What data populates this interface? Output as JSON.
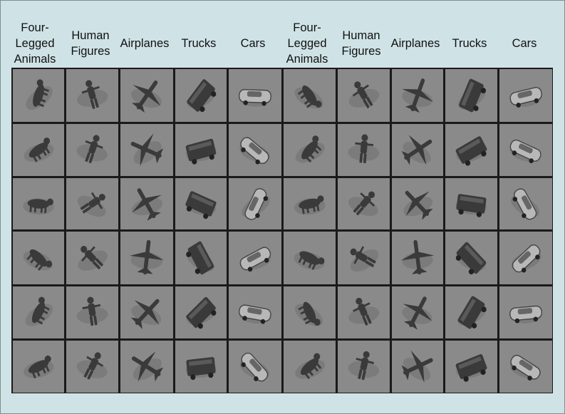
{
  "column_labels": [
    "Four-\nLegged\nAnimals",
    "Human\nFigures",
    "Airplanes",
    "Trucks",
    "Cars",
    "Four-\nLegged\nAnimals",
    "Human\nFigures",
    "Airplanes",
    "Trucks",
    "Cars"
  ],
  "grid": {
    "rows": 6,
    "columns": 10,
    "cell_categories": [
      "animal",
      "human",
      "airplane",
      "truck",
      "car",
      "animal",
      "human",
      "airplane",
      "truck",
      "car"
    ]
  },
  "colors": {
    "figure_background": "#cfe3e6",
    "grid_lines": "#1a1a1a",
    "cell_background": "#8a8a8a",
    "object_dark": "#3a3a3a",
    "object_light": "#b8b8b8"
  }
}
